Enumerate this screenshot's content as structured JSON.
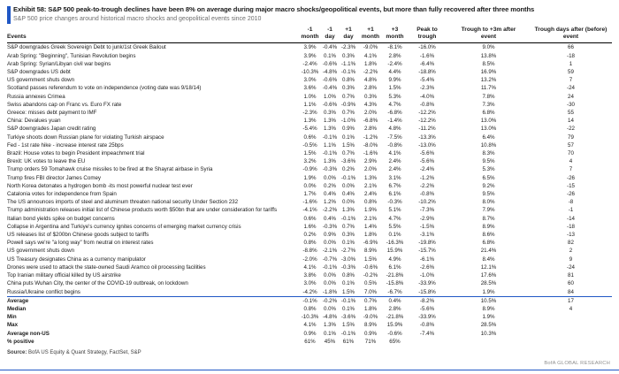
{
  "accent_color": "#2057C5",
  "header": {
    "title": "Exhibit 58: S&P 500 peak-to-trough declines have been 8% on average during major macro shocks/geopolitical events, but more than fully recovered after three months",
    "subtitle": "S&P 500 price changes around historical macro shocks and geopolitical events since 2010"
  },
  "table": {
    "columns": [
      "Events",
      "-1\nmonth",
      "-1\nday",
      "+1\nday",
      "+1\nmonth",
      "+3\nmonth",
      "Peak to\ntrough",
      "Trough to +3m after\nevent",
      "Trough days after (before)\nevent"
    ],
    "rows": [
      [
        "S&P downgrades Greek Sovereign Debt to junk/1st Greek Bailout",
        "3.9%",
        "-0.4%",
        "-2.3%",
        "-9.0%",
        "-8.1%",
        "-16.0%",
        "9.0%",
        "66"
      ],
      [
        "Arab Spring: \"Beginning\", Tunisian Revolution begins",
        "3.9%",
        "0.1%",
        "0.3%",
        "4.1%",
        "2.8%",
        "-1.6%",
        "13.8%",
        "-18"
      ],
      [
        "Arab Spring: Syrian/Libyan civil war begins",
        "-2.4%",
        "-0.6%",
        "-1.1%",
        "1.8%",
        "-2.4%",
        "-6.4%",
        "8.5%",
        "1"
      ],
      [
        "S&P downgrades US debt",
        "-10.3%",
        "-4.8%",
        "-0.1%",
        "-2.2%",
        "4.4%",
        "-18.8%",
        "16.9%",
        "59"
      ],
      [
        "US government shuts down",
        "3.0%",
        "-0.6%",
        "0.8%",
        "4.8%",
        "9.9%",
        "-5.4%",
        "13.2%",
        "7"
      ],
      [
        "Scotland passes referendum to vote on independence (voting date was 9/18/14)",
        "3.6%",
        "-0.4%",
        "0.3%",
        "2.8%",
        "1.5%",
        "-2.3%",
        "11.7%",
        "-24"
      ],
      [
        "Russia annexes Crimea",
        "1.0%",
        "1.0%",
        "0.7%",
        "0.3%",
        "5.3%",
        "-4.0%",
        "7.8%",
        "24"
      ],
      [
        "Swiss abandons cap on Franc vs. Euro FX rate",
        "1.1%",
        "-0.6%",
        "-0.9%",
        "4.3%",
        "4.7%",
        "-0.8%",
        "7.3%",
        "-30"
      ],
      [
        "Greece: misses debt payment to IMF",
        "-2.3%",
        "0.3%",
        "0.7%",
        "2.0%",
        "-6.8%",
        "-12.2%",
        "6.8%",
        "55"
      ],
      [
        "China: Devalues yuan",
        "1.3%",
        "1.3%",
        "-1.0%",
        "-6.8%",
        "-1.4%",
        "-12.2%",
        "13.0%",
        "14"
      ],
      [
        "S&P downgrades Japan credit rating",
        "-5.4%",
        "1.3%",
        "0.9%",
        "2.8%",
        "4.8%",
        "-11.2%",
        "13.0%",
        "-22"
      ],
      [
        "Turkiye shoots down Russian plane for violating Turkish airspace",
        "0.6%",
        "-0.1%",
        "0.1%",
        "-1.2%",
        "-7.5%",
        "-13.3%",
        "6.4%",
        "79"
      ],
      [
        "Fed - 1st rate hike - increase interest rate 25bps",
        "-0.5%",
        "1.1%",
        "1.5%",
        "-8.0%",
        "-0.8%",
        "-13.0%",
        "10.8%",
        "57"
      ],
      [
        "Brazil: House votes to begin President impeachment trial",
        "1.5%",
        "-0.1%",
        "0.7%",
        "-1.6%",
        "4.1%",
        "-5.6%",
        "8.3%",
        "70"
      ],
      [
        "Brexit: UK votes to leave the EU",
        "3.2%",
        "1.3%",
        "-3.6%",
        "2.9%",
        "2.4%",
        "-5.6%",
        "9.5%",
        "4"
      ],
      [
        "Trump orders 59 Tomahawk cruise missiles to be fired at the Shayrat airbase in Syria",
        "-0.9%",
        "-0.3%",
        "0.2%",
        "2.0%",
        "2.4%",
        "-2.4%",
        "5.3%",
        "7"
      ],
      [
        "Trump fires FBI director James Comey",
        "1.9%",
        "0.0%",
        "-0.1%",
        "1.3%",
        "3.1%",
        "-1.2%",
        "6.5%",
        "-26"
      ],
      [
        "North Korea detonates a hydrogen bomb -its most powerful nuclear test ever",
        "0.0%",
        "0.2%",
        "0.0%",
        "2.1%",
        "6.7%",
        "-2.2%",
        "9.2%",
        "-15"
      ],
      [
        "Catalonia votes for independence from Spain",
        "1.7%",
        "0.4%",
        "0.4%",
        "2.4%",
        "6.1%",
        "-0.8%",
        "9.5%",
        "-26"
      ],
      [
        "The US announces imports of steel and aluminum threaten national security Under Section 232",
        "-1.6%",
        "1.2%",
        "0.0%",
        "0.8%",
        "-0.3%",
        "-10.2%",
        "8.0%",
        "-8"
      ],
      [
        "Trump administration releases initial list of Chinese products worth $50bn that are under consideration for tariffs",
        "-4.1%",
        "-2.2%",
        "1.3%",
        "1.9%",
        "5.1%",
        "-7.3%",
        "7.9%",
        "-1"
      ],
      [
        "Italian bond yields spike on budget concerns",
        "0.6%",
        "0.4%",
        "-0.1%",
        "2.1%",
        "4.7%",
        "-2.9%",
        "8.7%",
        "-14"
      ],
      [
        "Collapse in Argentina and Turkiye's currency ignites concerns of emerging market currency crisis",
        "1.6%",
        "-0.3%",
        "0.7%",
        "1.4%",
        "5.5%",
        "-1.5%",
        "8.9%",
        "-18"
      ],
      [
        "US releases list of $200bn Chinese goods subject to tariffs",
        "0.2%",
        "0.9%",
        "0.3%",
        "1.8%",
        "0.1%",
        "-3.1%",
        "8.6%",
        "-13"
      ],
      [
        "Powell says we're \"a long way\" from neutral on interest rates",
        "0.8%",
        "0.0%",
        "0.1%",
        "-6.9%",
        "-16.3%",
        "-19.8%",
        "6.8%",
        "82"
      ],
      [
        "US government shuts down",
        "-8.8%",
        "-2.1%",
        "-2.7%",
        "8.9%",
        "15.9%",
        "-15.7%",
        "21.4%",
        "2"
      ],
      [
        "US Treasury designates China as a currency manipulator",
        "-2.0%",
        "-0.7%",
        "-3.0%",
        "1.5%",
        "4.9%",
        "-6.1%",
        "8.4%",
        "9"
      ],
      [
        "Drones were used to attack the state-owned Saudi Aramco oil processing facilities",
        "4.1%",
        "-0.1%",
        "-0.3%",
        "-0.6%",
        "6.1%",
        "-2.6%",
        "12.1%",
        "-24"
      ],
      [
        "Top Iranian military official killed by US airstrike",
        "3.8%",
        "0.0%",
        "0.8%",
        "-0.2%",
        "-21.8%",
        "-1.0%",
        "17.6%",
        "81"
      ],
      [
        "China puts Wuhan City, the center of the COVID-19 outbreak, on lockdown",
        "3.0%",
        "0.0%",
        "0.1%",
        "0.5%",
        "-15.8%",
        "-33.9%",
        "28.5%",
        "60"
      ],
      [
        "Russia/Ukraine conflict begins",
        "-4.2%",
        "-1.8%",
        "1.5%",
        "7.0%",
        "-6.7%",
        "-15.8%",
        "1.9%",
        "84"
      ]
    ],
    "summary_rows": [
      [
        "Average",
        "-0.1%",
        "-0.2%",
        "-0.1%",
        "0.7%",
        "0.4%",
        "-8.2%",
        "10.5%",
        "17"
      ],
      [
        "Median",
        "0.8%",
        "0.0%",
        "0.1%",
        "1.8%",
        "2.8%",
        "-5.6%",
        "8.9%",
        "4"
      ],
      [
        "Min",
        "-10.3%",
        "-4.8%",
        "-3.6%",
        "-9.0%",
        "-21.8%",
        "-33.9%",
        "1.9%",
        ""
      ],
      [
        "Max",
        "4.1%",
        "1.3%",
        "1.5%",
        "8.9%",
        "15.9%",
        "-0.8%",
        "28.5%",
        ""
      ],
      [
        "Average non-US",
        "0.9%",
        "0.1%",
        "-0.1%",
        "0.9%",
        "-0.6%",
        "-7.4%",
        "10.3%",
        ""
      ],
      [
        "% positive",
        "61%",
        "45%",
        "61%",
        "71%",
        "65%",
        "",
        "",
        ""
      ]
    ]
  },
  "footer": {
    "source_label": "Source:",
    "source_text": " BofA US Equity & Quant Strategy, FactSet, S&P",
    "brand": "BofA GLOBAL RESEARCH"
  }
}
